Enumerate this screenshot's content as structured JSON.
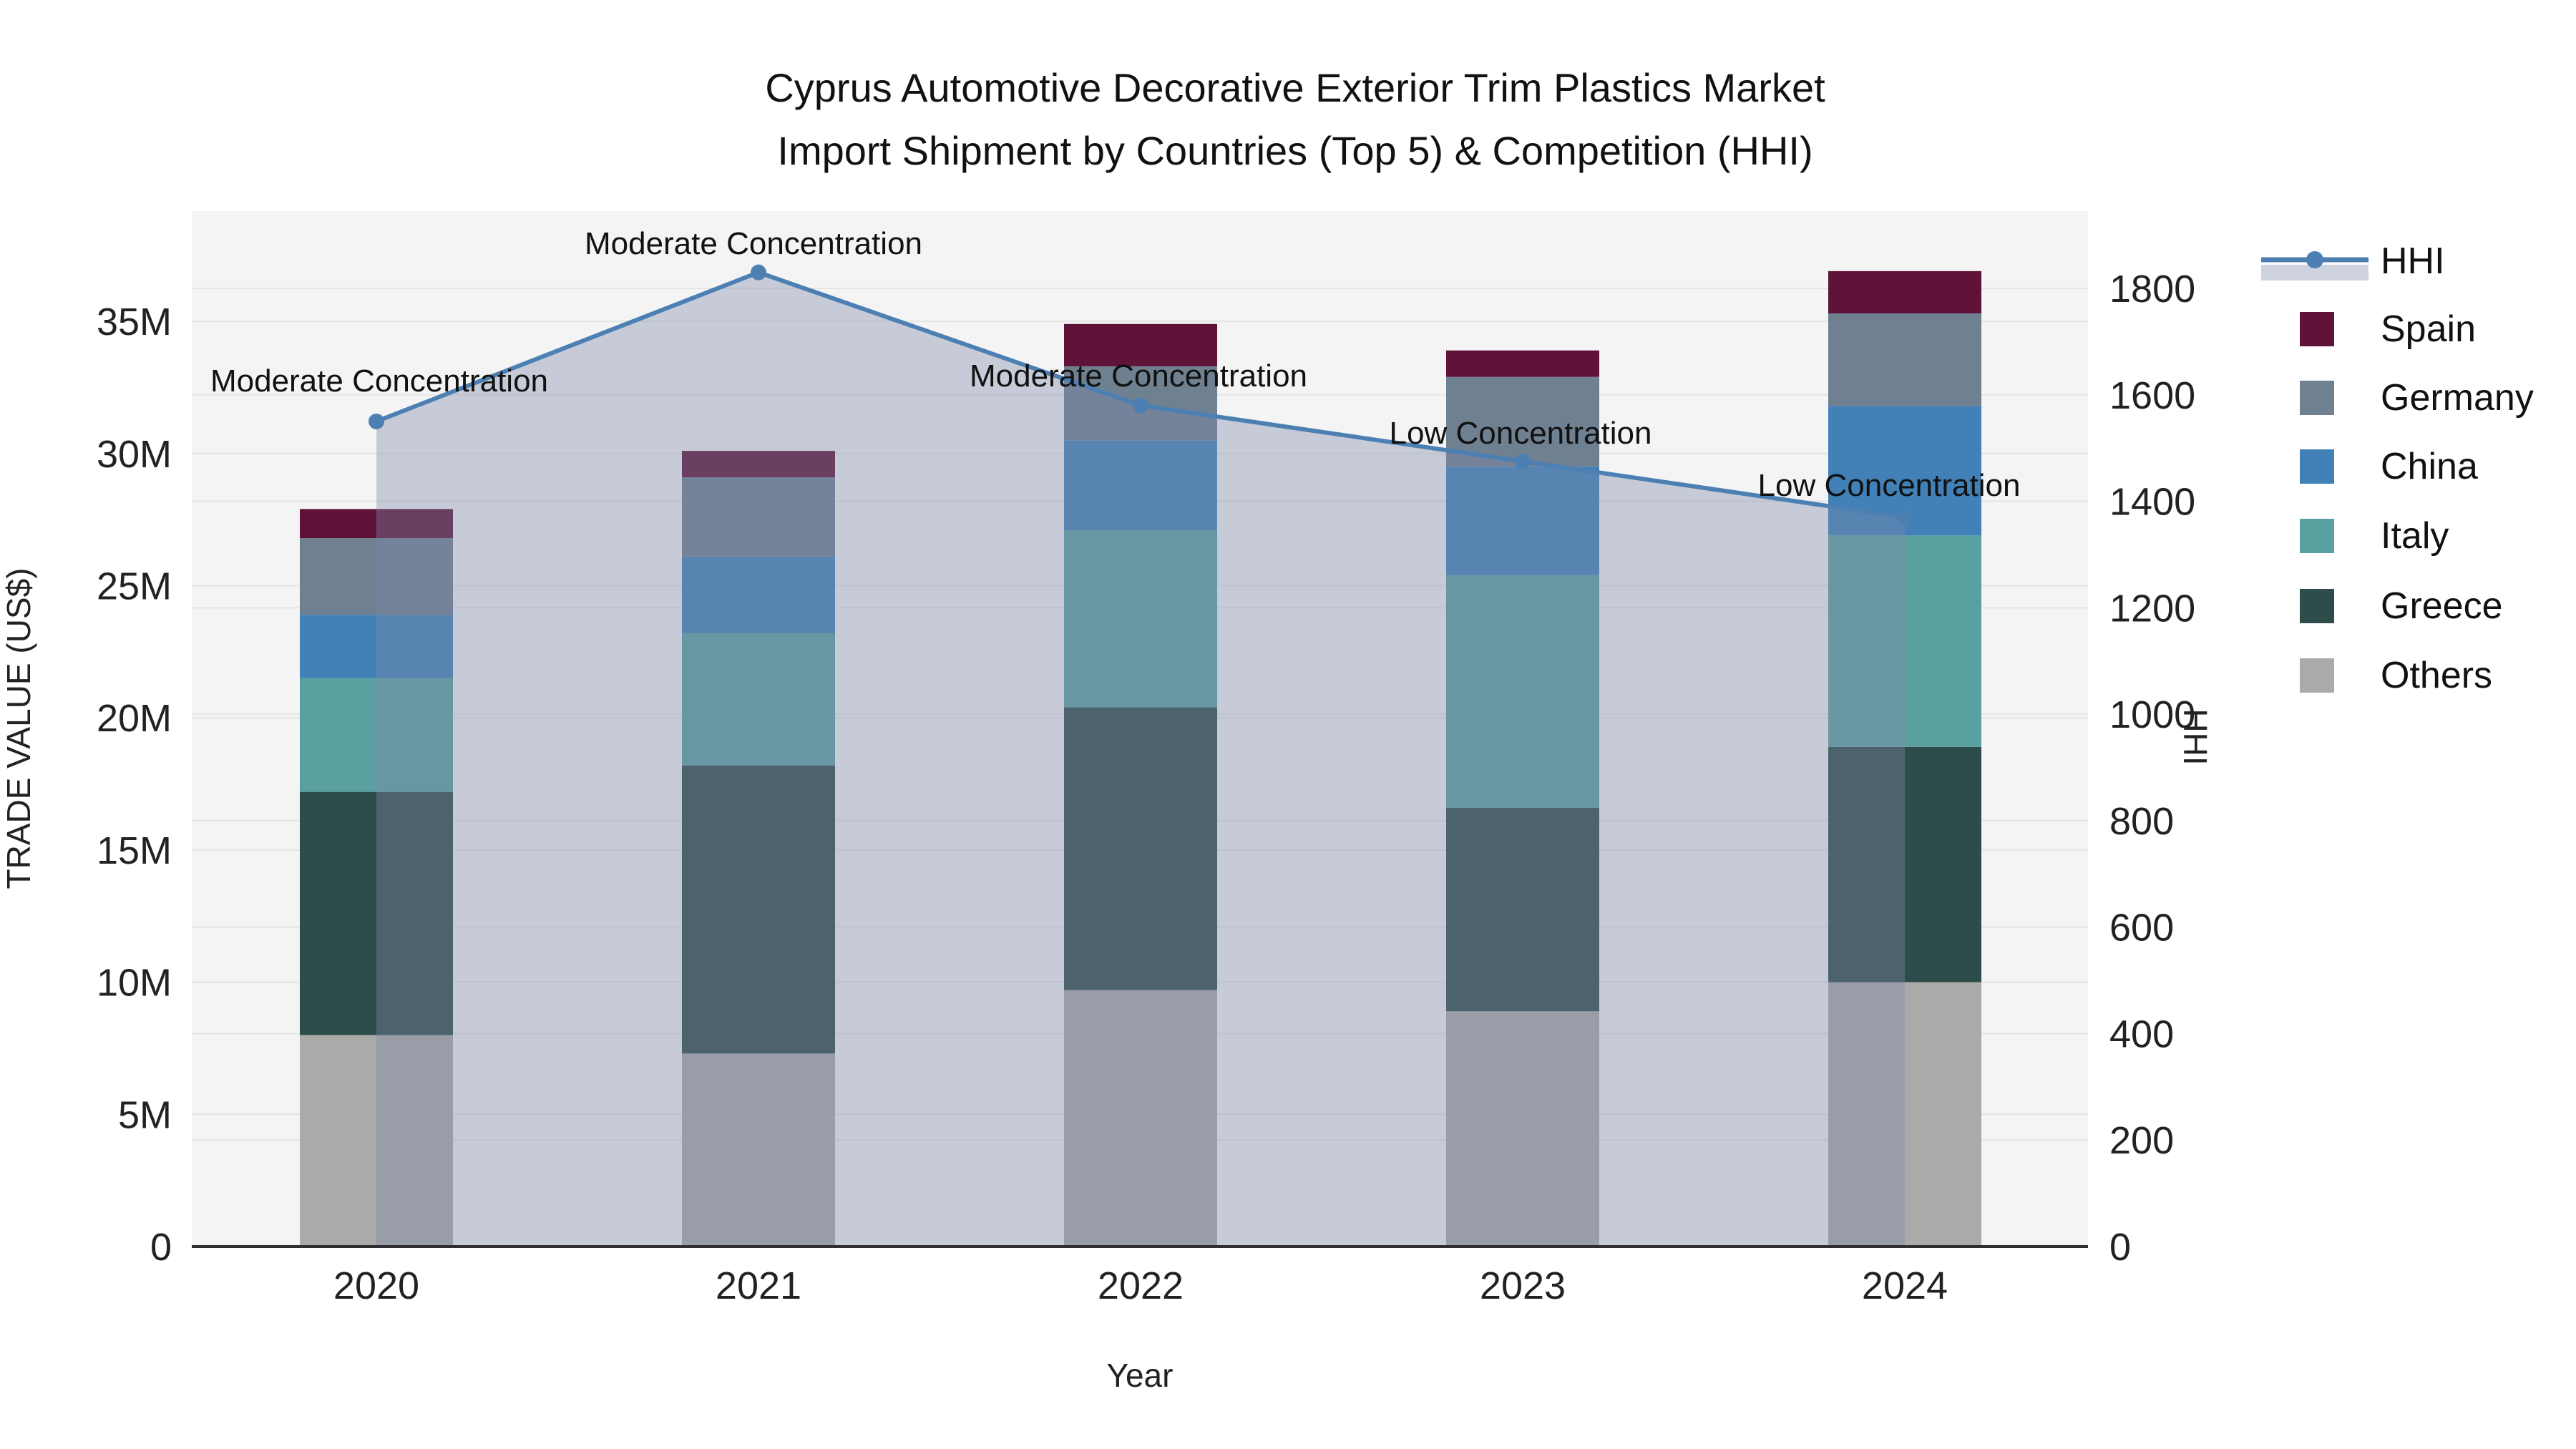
{
  "title": {
    "line1": "Cyprus Automotive Decorative Exterior Trim Plastics Market",
    "line2": "Import Shipment by Countries (Top 5) & Competition (HHI)"
  },
  "axes": {
    "x": {
      "title": "Year",
      "tick_labels": [
        "2020",
        "2021",
        "2022",
        "2023",
        "2024"
      ]
    },
    "y_left": {
      "title": "TRADE VALUE (US$)",
      "tick_labels": [
        "0",
        "5M",
        "10M",
        "15M",
        "20M",
        "25M",
        "30M",
        "35M"
      ],
      "tick_step_m": 5
    },
    "y_right": {
      "title": "HHI",
      "tick_labels": [
        "0",
        "200",
        "400",
        "600",
        "800",
        "1000",
        "1200",
        "1400",
        "1600",
        "1800"
      ],
      "tick_step": 200
    }
  },
  "legend": [
    {
      "label": "HHI",
      "type": "line",
      "color": "#4c80b3"
    },
    {
      "label": "Spain",
      "type": "swatch",
      "color": "#5f1338"
    },
    {
      "label": "Germany",
      "type": "swatch",
      "color": "#6f8090"
    },
    {
      "label": "China",
      "type": "swatch",
      "color": "#4181b8"
    },
    {
      "label": "Italy",
      "type": "swatch",
      "color": "#5ba0a0"
    },
    {
      "label": "Greece",
      "type": "swatch",
      "color": "#2e4c49"
    },
    {
      "label": "Others",
      "type": "swatch",
      "color": "#aaaaa8"
    }
  ],
  "chart_data": {
    "type": "bar+line",
    "title": "Cyprus Automotive Decorative Exterior Trim Plastics Market Import Shipment by Countries (Top 5) & Competition (HHI)",
    "xlabel": "Year",
    "ylabel_left": "TRADE VALUE (US$)",
    "ylabel_right": "HHI",
    "categories": [
      "2020",
      "2021",
      "2022",
      "2023",
      "2024"
    ],
    "bar_unit": "million US$",
    "stack_order_bottom_to_top": [
      "Others",
      "Greece",
      "Italy",
      "China",
      "Germany",
      "Spain"
    ],
    "series": [
      {
        "name": "Others",
        "color": "#aaaaa8",
        "values": [
          8.0,
          7.3,
          9.7,
          8.9,
          10.0
        ]
      },
      {
        "name": "Greece",
        "color": "#2e4c49",
        "values": [
          9.2,
          10.9,
          10.7,
          7.7,
          8.9
        ]
      },
      {
        "name": "Italy",
        "color": "#5ba0a0",
        "values": [
          4.3,
          5.0,
          6.7,
          8.8,
          8.0
        ]
      },
      {
        "name": "China",
        "color": "#4181b8",
        "values": [
          2.4,
          2.9,
          3.4,
          4.1,
          4.9
        ]
      },
      {
        "name": "Germany",
        "color": "#6f8090",
        "values": [
          2.9,
          3.0,
          2.8,
          3.4,
          3.5
        ]
      },
      {
        "name": "Spain",
        "color": "#5f1338",
        "values": [
          1.1,
          1.0,
          1.6,
          1.0,
          1.6
        ]
      }
    ],
    "bar_totals_m": [
      27.9,
      30.1,
      34.9,
      33.9,
      36.9
    ],
    "line": {
      "name": "HHI",
      "color": "#4c80b3",
      "area_fill": "rgba(125,138,168,0.38)",
      "values": [
        1550,
        1830,
        1580,
        1475,
        1370
      ]
    },
    "annotations": [
      {
        "label": "Moderate Concentration",
        "x": 530,
        "y": 532
      },
      {
        "label": "Moderate Concentration",
        "x": 1053,
        "y": 340
      },
      {
        "label": "Moderate Concentration",
        "x": 1591,
        "y": 525
      },
      {
        "label": "Low Concentration",
        "x": 2125,
        "y": 605
      },
      {
        "label": "Low Concentration",
        "x": 2640,
        "y": 678
      }
    ],
    "ylim_left_m": [
      0,
      39.2
    ],
    "ylim_right": [
      0,
      1945
    ],
    "grid": true,
    "legend_position": "right",
    "theme": {
      "plot_background": "#f4f4f4",
      "page_background": "#ffffff",
      "gridline": "#e5e5e5",
      "axis_line": "#2f2f2f"
    }
  }
}
